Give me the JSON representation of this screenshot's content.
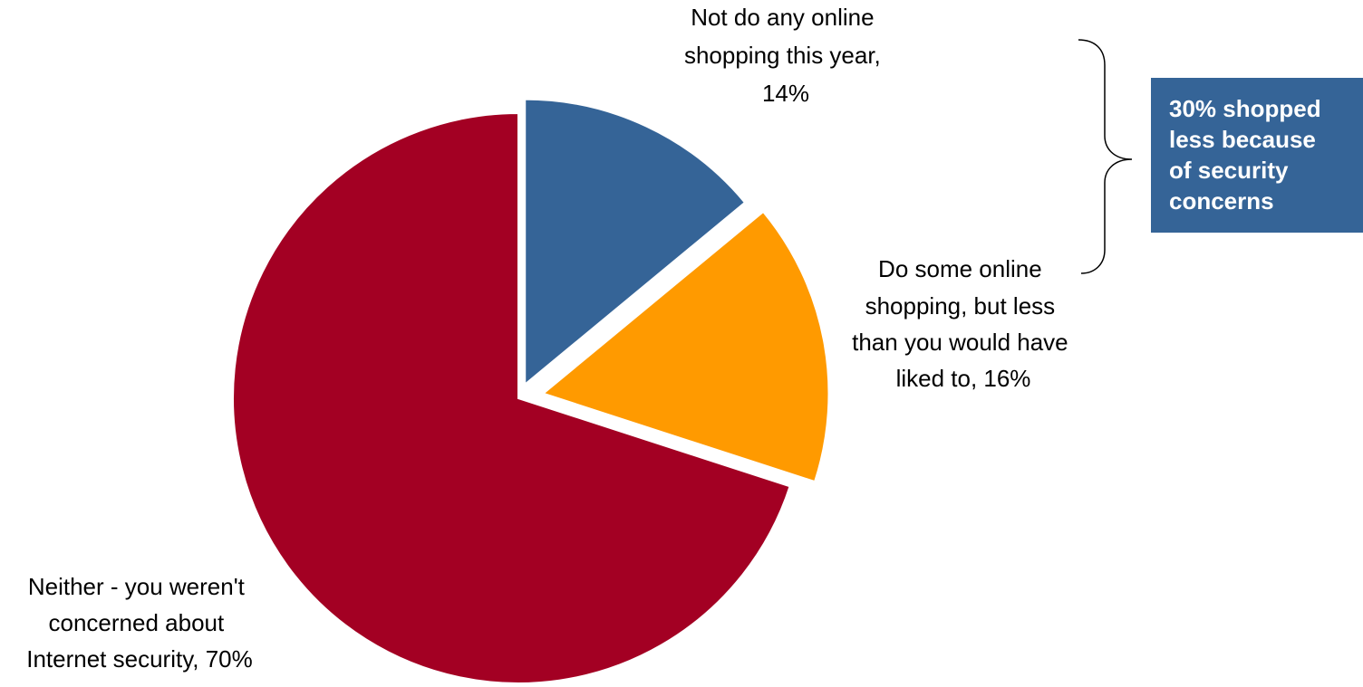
{
  "chart_data": {
    "type": "pie",
    "slices": [
      {
        "label": [
          "Not do any online",
          "shopping this year,",
          "14%"
        ],
        "value": 14,
        "color": "#356497"
      },
      {
        "label": [
          "Do some online",
          "shopping, but less",
          "than you would have",
          "liked to, 16%"
        ],
        "value": 16,
        "color": "#FF9A00"
      },
      {
        "label": [
          "Neither - you weren't",
          "concerned about",
          "Internet security, 70%"
        ],
        "value": 70,
        "color": "#A30023"
      }
    ],
    "annotation": {
      "lines": [
        "30% shopped",
        "less because",
        "of security",
        "concerns"
      ],
      "color": "#356497"
    }
  }
}
